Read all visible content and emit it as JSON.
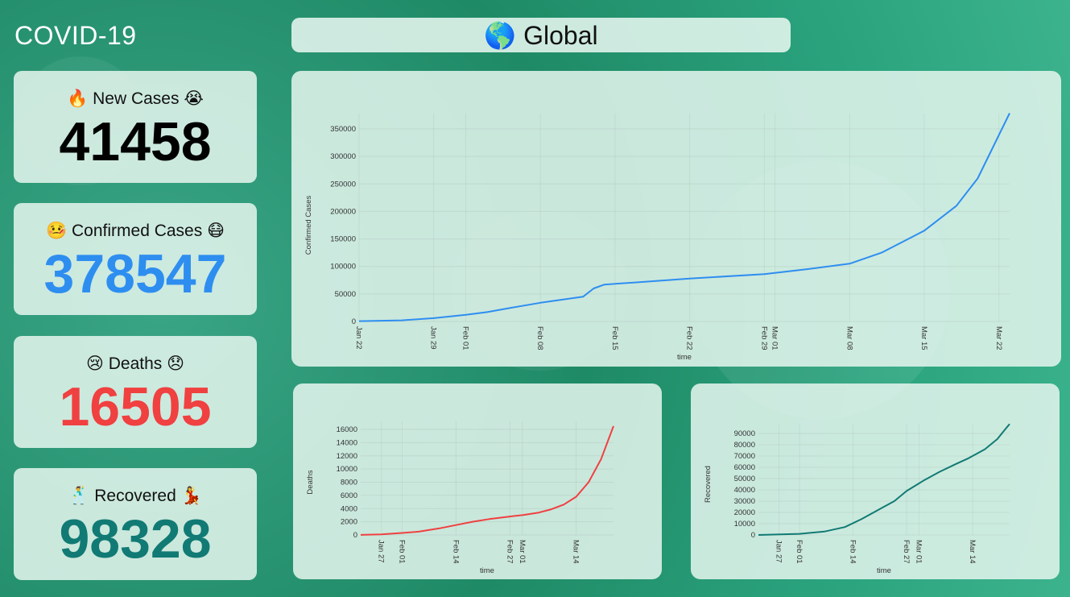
{
  "app_title": "COVID-19",
  "header": {
    "icon": "🌎",
    "region": "Global"
  },
  "cards": [
    {
      "icon_left": "🔥",
      "label": "New Cases",
      "icon_right": "😭",
      "value": "41458",
      "color": "#000000"
    },
    {
      "icon_left": "🤒",
      "label": "Confirmed Cases",
      "icon_right": "😷",
      "value": "378547",
      "color": "#2e8ef0"
    },
    {
      "icon_left": "😢",
      "label": "Deaths",
      "icon_right": "😞",
      "value": "16505",
      "color": "#f04040"
    },
    {
      "icon_left": "🕺",
      "label": "Recovered",
      "icon_right": "💃",
      "value": "98328",
      "color": "#117a74"
    }
  ],
  "chart_data": [
    {
      "type": "line",
      "color": "#2e8ef0",
      "xlabel": "time",
      "ylabel": "Confirmed Cases",
      "ylim": [
        0,
        350000
      ],
      "yticks": [
        0,
        50000,
        100000,
        150000,
        200000,
        250000,
        300000,
        350000
      ],
      "xticks": [
        "Jan 22",
        "Jan 29",
        "Feb 01",
        "Feb 08",
        "Feb 15",
        "Feb 22",
        "Feb 29",
        "Mar 01",
        "Mar 08",
        "Mar 15",
        "Mar 22"
      ],
      "x": [
        "Jan 22",
        "Jan 26",
        "Jan 29",
        "Feb 01",
        "Feb 03",
        "Feb 05",
        "Feb 08",
        "Feb 12",
        "Feb 13",
        "Feb 14",
        "Feb 17",
        "Feb 22",
        "Feb 29",
        "Mar 04",
        "Mar 08",
        "Mar 11",
        "Mar 13",
        "Mar 15",
        "Mar 18",
        "Mar 20",
        "Mar 23"
      ],
      "y": [
        555,
        2000,
        6000,
        12000,
        17000,
        24000,
        34000,
        45000,
        60000,
        67000,
        71000,
        78000,
        86000,
        95000,
        105000,
        125000,
        145000,
        165000,
        210000,
        260000,
        378547
      ]
    },
    {
      "type": "line",
      "color": "#f04040",
      "xlabel": "time",
      "ylabel": "Deaths",
      "ylim": [
        0,
        16000
      ],
      "yticks": [
        0,
        2000,
        4000,
        6000,
        8000,
        10000,
        12000,
        14000,
        16000
      ],
      "xticks": [
        "Jan 27",
        "Feb 01",
        "Feb 14",
        "Feb 27",
        "Mar 01",
        "Mar 14"
      ],
      "x": [
        "Jan 22",
        "Jan 27",
        "Feb 01",
        "Feb 05",
        "Feb 10",
        "Feb 14",
        "Feb 18",
        "Feb 22",
        "Feb 27",
        "Mar 01",
        "Mar 05",
        "Mar 08",
        "Mar 11",
        "Mar 14",
        "Mar 17",
        "Mar 20",
        "Mar 23"
      ],
      "y": [
        17,
        100,
        300,
        500,
        1000,
        1500,
        2000,
        2400,
        2800,
        3000,
        3400,
        3900,
        4600,
        5800,
        8000,
        11500,
        16505
      ]
    },
    {
      "type": "line",
      "color": "#117a74",
      "xlabel": "time",
      "ylabel": "Recovered",
      "ylim": [
        0,
        90000
      ],
      "yticks": [
        0,
        10000,
        20000,
        30000,
        40000,
        50000,
        60000,
        70000,
        80000,
        90000
      ],
      "xticks": [
        "Jan 27",
        "Feb 01",
        "Feb 14",
        "Feb 27",
        "Mar 01",
        "Mar 14"
      ],
      "x": [
        "Jan 22",
        "Feb 01",
        "Feb 07",
        "Feb 12",
        "Feb 16",
        "Feb 19",
        "Feb 21",
        "Feb 24",
        "Feb 27",
        "Mar 02",
        "Mar 06",
        "Mar 10",
        "Mar 13",
        "Mar 17",
        "Mar 20",
        "Mar 22",
        "Mar 23"
      ],
      "y": [
        28,
        1000,
        3000,
        7000,
        14000,
        20000,
        24000,
        30000,
        39000,
        48000,
        56000,
        63000,
        68000,
        76000,
        85000,
        94000,
        98328
      ]
    }
  ]
}
